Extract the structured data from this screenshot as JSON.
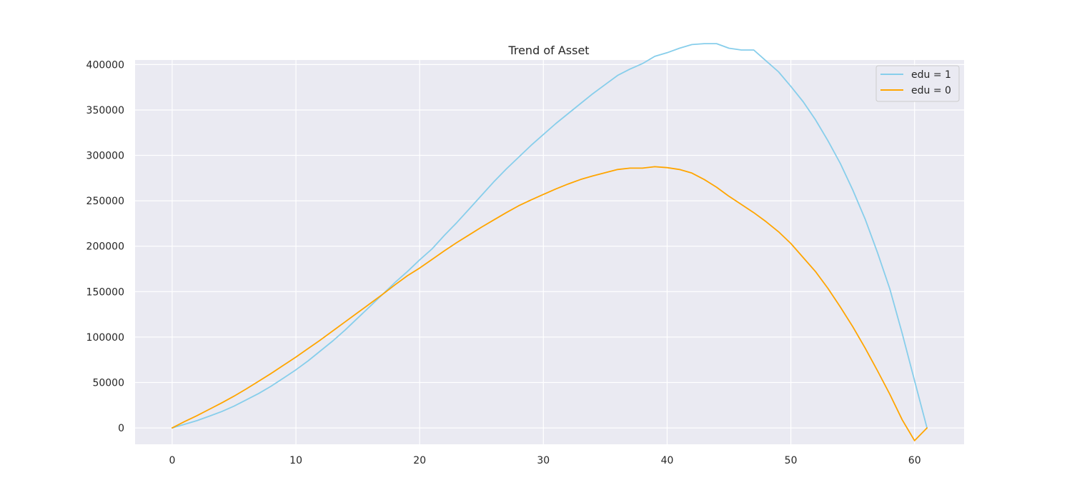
{
  "chart_data": {
    "type": "line",
    "title": "Trend of Asset",
    "xlabel": "",
    "ylabel": "",
    "xlim": [
      -3,
      64
    ],
    "ylim": [
      -18000,
      405000
    ],
    "xticks": [
      0,
      10,
      20,
      30,
      40,
      50,
      60
    ],
    "yticks": [
      0,
      50000,
      100000,
      150000,
      200000,
      250000,
      300000,
      350000,
      400000
    ],
    "grid": true,
    "legend_position": "top-right",
    "x": [
      0,
      1,
      2,
      3,
      4,
      5,
      6,
      7,
      8,
      9,
      10,
      11,
      12,
      13,
      14,
      15,
      16,
      17,
      18,
      19,
      20,
      21,
      22,
      23,
      24,
      25,
      26,
      27,
      28,
      29,
      30,
      31,
      32,
      33,
      34,
      35,
      36,
      37,
      38,
      39,
      40,
      41,
      42,
      43,
      44,
      45,
      46,
      47,
      48,
      49,
      50,
      51,
      52,
      53,
      54,
      55,
      56,
      57,
      58,
      59,
      60,
      61
    ],
    "series": [
      {
        "name": "edu = 1",
        "color": "#87ceeb",
        "values": [
          0,
          4000,
          8000,
          13000,
          18000,
          24000,
          31000,
          38000,
          46000,
          55000,
          64000,
          74000,
          85000,
          96000,
          108000,
          121000,
          134000,
          147000,
          160000,
          172000,
          185000,
          197000,
          212000,
          226000,
          241000,
          256000,
          271000,
          285000,
          298000,
          311000,
          323000,
          335000,
          346000,
          357000,
          368000,
          378000,
          388000,
          395000,
          401000,
          409000,
          413000,
          418000,
          422000,
          423000,
          423000,
          418000,
          416000,
          416000,
          404000,
          392000,
          376000,
          359000,
          339000,
          316000,
          291000,
          262000,
          230000,
          193000,
          153000,
          104000,
          52000,
          0
        ]
      },
      {
        "name": "edu = 0",
        "color": "#ffa500",
        "values": [
          0,
          7000,
          13500,
          20500,
          27500,
          35000,
          43000,
          51500,
          60000,
          69000,
          78000,
          87500,
          97000,
          107000,
          117000,
          127000,
          137000,
          147000,
          157500,
          167500,
          176000,
          185500,
          195000,
          204000,
          212500,
          221000,
          229000,
          237000,
          244500,
          251000,
          257000,
          263000,
          268500,
          273500,
          277500,
          281000,
          284500,
          286000,
          286000,
          287500,
          286500,
          284500,
          280500,
          273500,
          265000,
          255000,
          246000,
          237000,
          227000,
          216000,
          203000,
          187500,
          172000,
          153500,
          133000,
          111500,
          88000,
          63000,
          37000,
          9000,
          -14000,
          0
        ]
      }
    ]
  }
}
